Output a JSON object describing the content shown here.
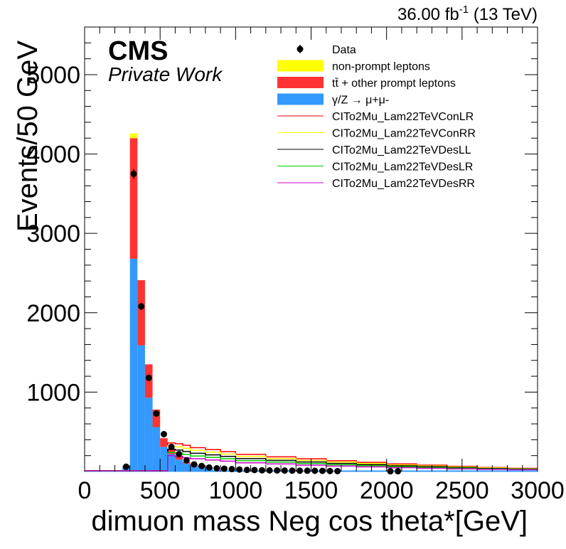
{
  "chart_data": {
    "type": "bar",
    "stacked": true,
    "xlabel": "dimuon mass Neg cos theta*[GeV]",
    "ylabel": "Events/50 GeV",
    "xlim": [
      0,
      3000
    ],
    "ylim": [
      0,
      5600
    ],
    "xticks": [
      0,
      500,
      1000,
      1500,
      2000,
      2500,
      3000
    ],
    "yticks": [
      1000,
      2000,
      3000,
      4000,
      5000
    ],
    "lumi_label": "36.00 fb-1 (13 TeV)",
    "experiment": "CMS",
    "status": "Private Work",
    "grid": false,
    "legend_position": "top-right",
    "bin_width": 50,
    "bin_edges_start": [
      200,
      250,
      300,
      350,
      400,
      450,
      500,
      550,
      600,
      650,
      700,
      750,
      800
    ],
    "stack": [
      {
        "name": "γ/Z → μ+μ-",
        "color": "#3399ff",
        "values": [
          10,
          60,
          2680,
          1590,
          930,
          560,
          310,
          220,
          150,
          100,
          80,
          60,
          45
        ]
      },
      {
        "name": "tt̄ + other prompt leptons",
        "color": "#ff3333",
        "values": [
          0,
          5,
          1520,
          820,
          420,
          220,
          110,
          60,
          35,
          20,
          15,
          10,
          8
        ]
      },
      {
        "name": "non-prompt leptons",
        "color": "#ffff00",
        "values": [
          0,
          0,
          60,
          0,
          0,
          0,
          0,
          0,
          0,
          0,
          0,
          0,
          0
        ]
      }
    ],
    "data_points": {
      "name": "Data",
      "x": [
        275,
        325,
        375,
        425,
        475,
        525,
        575,
        625,
        675,
        725,
        775,
        825,
        875,
        925,
        975,
        1025,
        1075,
        1125,
        1175,
        1225,
        1275,
        1325,
        1375,
        1425,
        1475,
        1525,
        1575,
        1625,
        1675,
        2025,
        2075
      ],
      "y": [
        60,
        3750,
        2080,
        1180,
        730,
        470,
        310,
        220,
        140,
        90,
        70,
        50,
        40,
        35,
        30,
        25,
        20,
        18,
        15,
        14,
        13,
        12,
        11,
        10,
        10,
        9,
        8,
        6,
        5,
        3,
        3
      ]
    },
    "signals": [
      {
        "name": "CITo2Mu_Lam22TeVConLR",
        "color": "#ff0000"
      },
      {
        "name": "CITo2Mu_Lam22TeVConRR",
        "color": "#ffff00"
      },
      {
        "name": "CITo2Mu_Lam22TeVDesLL",
        "color": "#000000"
      },
      {
        "name": "CITo2Mu_Lam22TeVDesLR",
        "color": "#00cc00"
      },
      {
        "name": "CITo2Mu_Lam22TeVDesRR",
        "color": "#cc00cc"
      }
    ],
    "signal_x": [
      600,
      650,
      700,
      800,
      900,
      1000,
      1200,
      1400,
      1600,
      1800,
      2000,
      2200,
      2400,
      2600,
      2800,
      3000
    ],
    "signal_upper": [
      360,
      350,
      330,
      300,
      275,
      250,
      215,
      185,
      160,
      135,
      115,
      95,
      80,
      65,
      50,
      40
    ],
    "signal_lower": [
      200,
      190,
      175,
      160,
      145,
      130,
      110,
      95,
      80,
      68,
      58,
      48,
      40,
      33,
      27,
      22
    ],
    "signal_start": [
      550,
      550,
      550,
      550,
      550
    ]
  }
}
